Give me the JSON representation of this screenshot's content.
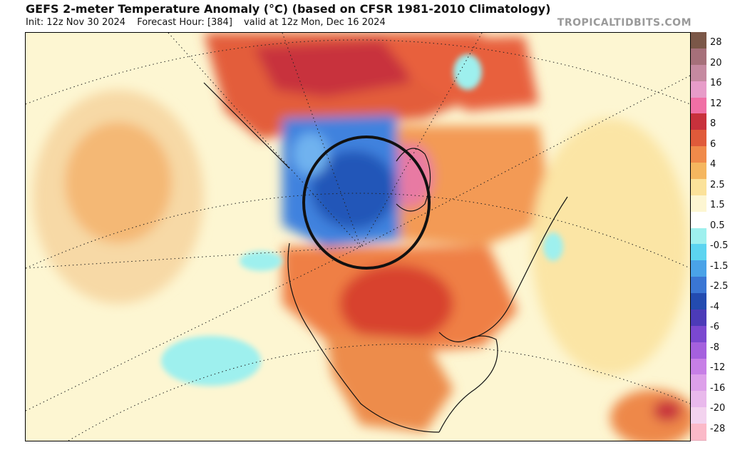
{
  "header": {
    "title": "GEFS 2-meter Temperature Anomaly (°C) (based on CFSR 1981-2010 Climatology)",
    "init": "Init: 12z Nov 30 2024",
    "forecast_hour": "Forecast Hour: [384]",
    "valid": "valid at 12z Mon, Dec 16 2024",
    "brand": "TROPICALTIDBITS.COM"
  },
  "colorbar": {
    "ticks": [
      "28",
      "20",
      "16",
      "12",
      "8",
      "6",
      "4",
      "2.5",
      "1.5",
      "0.5",
      "-0.5",
      "-1.5",
      "-2.5",
      "-4",
      "-6",
      "-8",
      "-12",
      "-16",
      "-20",
      "-28"
    ],
    "colors": [
      "#7b5748",
      "#a6707a",
      "#c589a0",
      "#e79cc9",
      "#f06fa5",
      "#c8313c",
      "#e05a3a",
      "#f08a4a",
      "#f5b65f",
      "#fbe29a",
      "#fdf6d2",
      "#ffffff",
      "#9ef0ee",
      "#5cd4f0",
      "#4aa3e8",
      "#3a76d4",
      "#234bb0",
      "#4c3bb8",
      "#7b48d0",
      "#a560de",
      "#c77fe6",
      "#dda0ea",
      "#e9b9ec",
      "#f3d3ef",
      "#fbb9c8"
    ]
  },
  "map": {
    "highlight": "circled-region-western-canada"
  }
}
